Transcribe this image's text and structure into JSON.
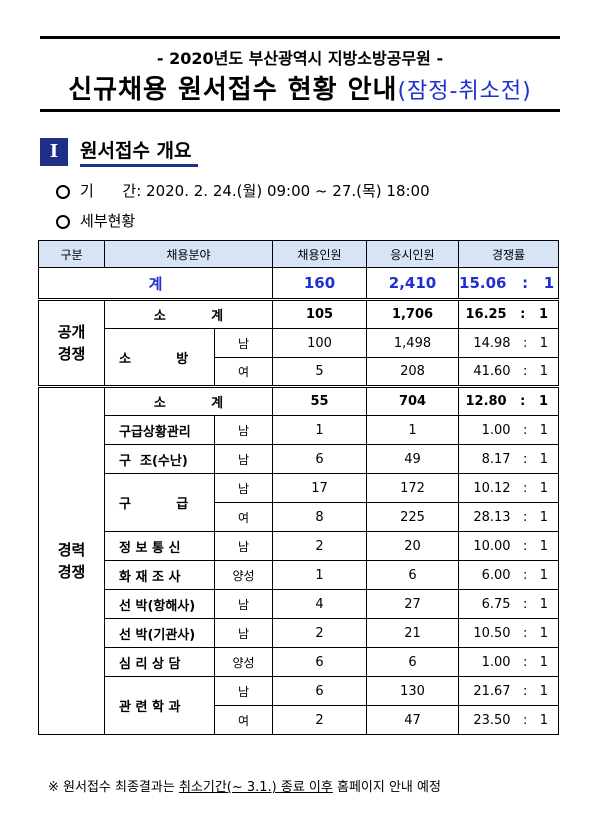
{
  "header": {
    "subtitle": "- 2020년도 부산광역시 지방소방공무원 -",
    "title_main": "신규채용 원서접수 현황 안내",
    "title_paren": "(잠정-취소전)"
  },
  "section": {
    "numeral": "I",
    "title": "원서접수 개요"
  },
  "bullets": [
    "기      간: 2020. 2. 24.(월) 09:00 ~ 27.(목) 18:00",
    "세부현황"
  ],
  "table": {
    "headers": [
      "구분",
      "채용분야",
      "채용인원",
      "응시인원",
      "경쟁률"
    ],
    "total": {
      "label": "계",
      "hire": "160",
      "apply": "2,410",
      "ratio": "15.06   :   1"
    },
    "open": {
      "label": "공개\n경쟁",
      "subtotal": {
        "label": "소          계",
        "hire": "105",
        "apply": "1,706",
        "ratio": "16.25   :   1"
      },
      "field": "소          방",
      "rows": [
        {
          "gender": "남",
          "hire": "100",
          "apply": "1,498",
          "ratio": "14.98   :   1"
        },
        {
          "gender": "여",
          "hire": "5",
          "apply": "208",
          "ratio": "41.60   :   1"
        }
      ]
    },
    "career": {
      "label": "경력\n경쟁",
      "subtotal": {
        "label": "소          계",
        "hire": "55",
        "apply": "704",
        "ratio": "12.80   :   1"
      },
      "rows": [
        {
          "field": "구급상황관리",
          "gender": "남",
          "hire": "1",
          "apply": "1",
          "ratio": "1.00   :   1"
        },
        {
          "field": "구  조(수난)",
          "gender": "남",
          "hire": "6",
          "apply": "49",
          "ratio": "8.17   :   1"
        },
        {
          "field": "구          급",
          "gender": "남",
          "hire": "17",
          "apply": "172",
          "ratio": "10.12   :   1"
        },
        {
          "field": "",
          "gender": "여",
          "hire": "8",
          "apply": "225",
          "ratio": "28.13   :   1"
        },
        {
          "field": "정 보 통 신",
          "gender": "남",
          "hire": "2",
          "apply": "20",
          "ratio": "10.00   :   1"
        },
        {
          "field": "화 재 조 사",
          "gender": "양성",
          "hire": "1",
          "apply": "6",
          "ratio": "6.00   :   1"
        },
        {
          "field": "선 박(항해사)",
          "gender": "남",
          "hire": "4",
          "apply": "27",
          "ratio": "6.75   :   1"
        },
        {
          "field": "선 박(기관사)",
          "gender": "남",
          "hire": "2",
          "apply": "21",
          "ratio": "10.50   :   1"
        },
        {
          "field": "심 리 상 담",
          "gender": "양성",
          "hire": "6",
          "apply": "6",
          "ratio": "1.00   :   1"
        },
        {
          "field": "관 련 학 과",
          "gender": "남",
          "hire": "6",
          "apply": "130",
          "ratio": "21.67   :   1"
        },
        {
          "field": "",
          "gender": "여",
          "hire": "2",
          "apply": "47",
          "ratio": "23.50   :   1"
        }
      ]
    }
  },
  "footer": {
    "prefix": "※ 원서접수 최종결과는 ",
    "underlined": "취소기간(~ 3.1.) 종료 이후",
    "suffix": " 홈페이지 안내 예정"
  },
  "colors": {
    "accent_blue": "#1f2fd0",
    "header_fill": "#d6e4f5",
    "section_box": "#1f2f88"
  }
}
